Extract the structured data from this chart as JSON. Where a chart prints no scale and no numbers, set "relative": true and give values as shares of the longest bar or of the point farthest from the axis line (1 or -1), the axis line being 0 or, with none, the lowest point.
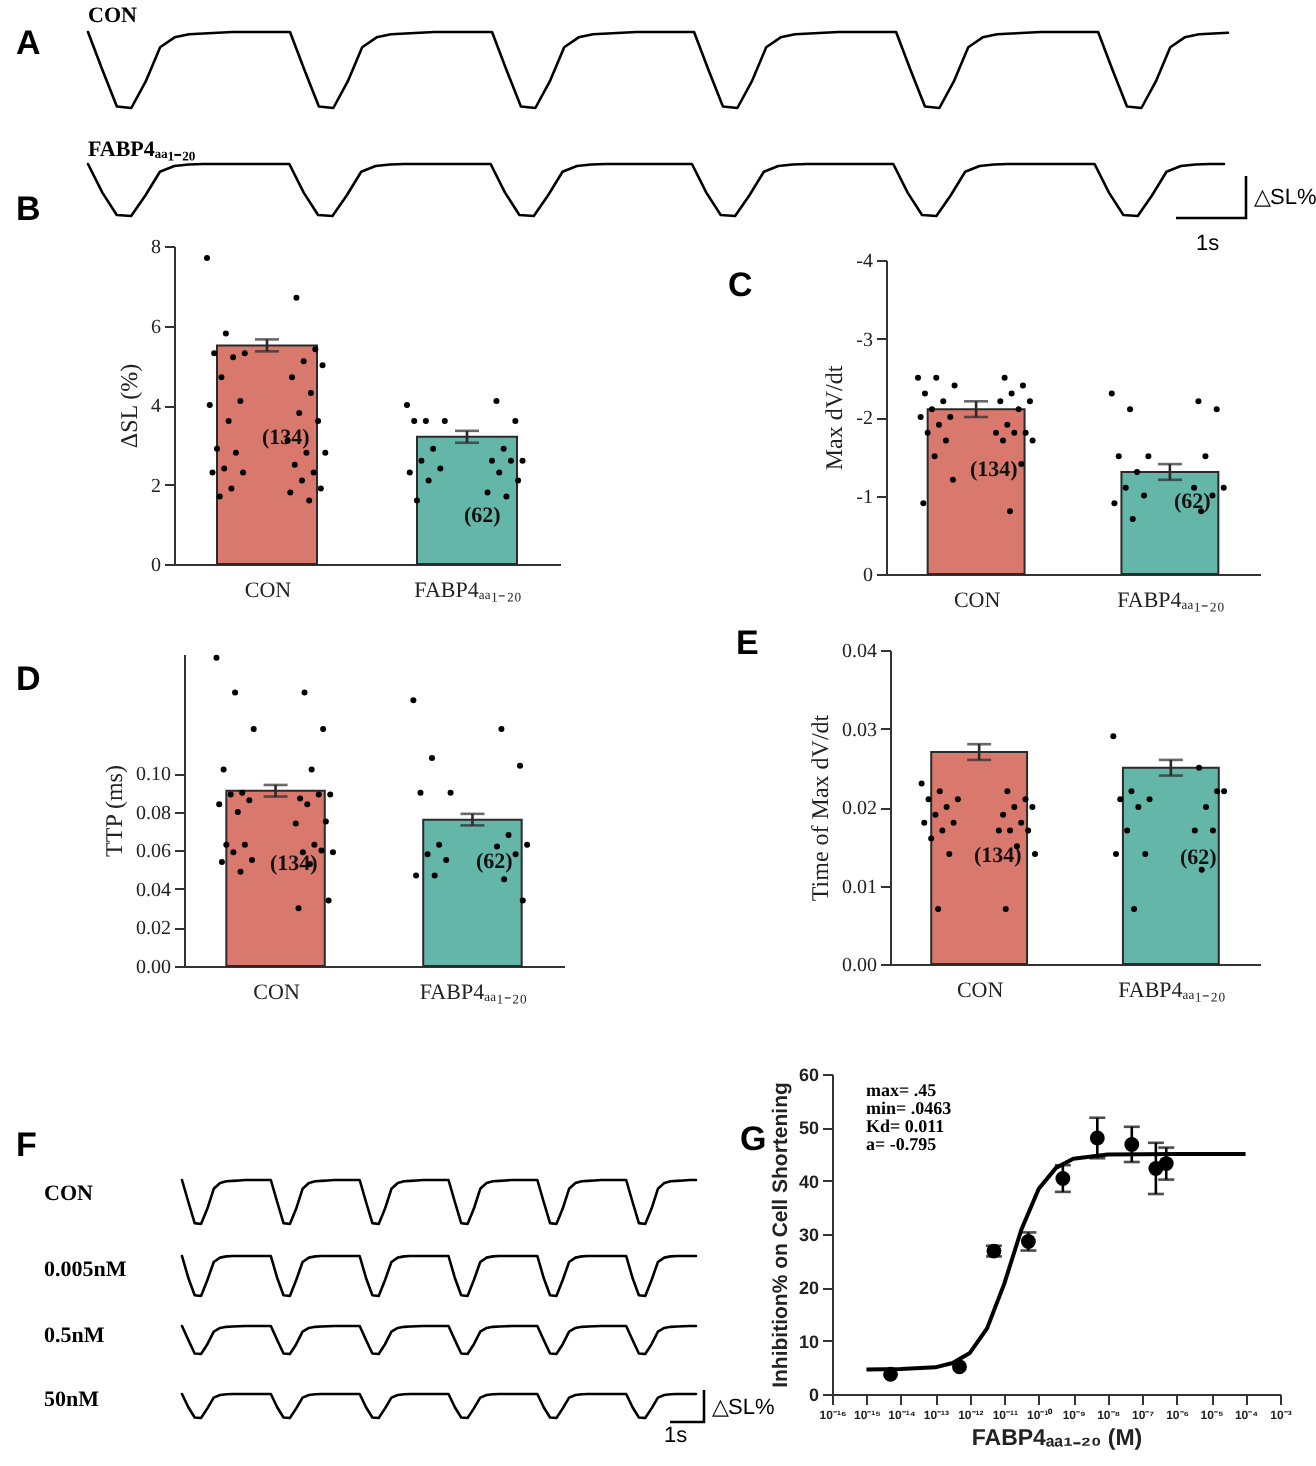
{
  "chart_data": [
    {
      "type": "line",
      "relative": true,
      "title": "CON",
      "color": "#000000",
      "annotations": [
        "A"
      ],
      "categories": [
        null,
        null,
        null,
        null,
        null,
        null,
        null,
        null,
        null,
        null,
        null,
        null,
        null,
        null,
        null,
        null,
        null,
        null,
        null,
        null,
        null,
        null,
        null,
        null,
        null,
        null,
        null,
        null,
        null,
        null,
        null,
        null,
        null,
        null,
        null,
        null,
        null,
        null,
        null,
        null,
        null,
        null,
        null,
        null,
        null,
        null,
        null,
        null,
        null,
        null,
        null,
        null,
        null,
        null,
        null,
        null,
        null,
        null,
        null,
        null,
        null,
        null,
        null,
        null,
        null,
        null,
        null,
        null,
        null,
        null,
        null,
        null,
        null,
        null,
        null,
        null,
        null,
        null,
        null,
        null
      ],
      "values": [
        1,
        0.5,
        0.02,
        0,
        0.35,
        0.8,
        0.93,
        0.97,
        0.98,
        0.99,
        1,
        1,
        1,
        1,
        1,
        0.5,
        0.02,
        0,
        0.35,
        0.8,
        0.93,
        0.97,
        0.98,
        0.99,
        1,
        1,
        1,
        1,
        1,
        0.5,
        0.02,
        0,
        0.35,
        0.8,
        0.93,
        0.97,
        0.98,
        0.99,
        1,
        1,
        1,
        1,
        1,
        0.5,
        0.02,
        0,
        0.35,
        0.8,
        0.93,
        0.97,
        0.98,
        0.99,
        1,
        1,
        1,
        1,
        1,
        0.5,
        0.02,
        0,
        0.35,
        0.8,
        0.93,
        0.97,
        0.98,
        0.99,
        1,
        1,
        1,
        1,
        1,
        0.5,
        0.02,
        0,
        0.35,
        0.8,
        0.93,
        0.97,
        0.98,
        0.99
      ]
    },
    {
      "type": "line",
      "relative": true,
      "title": "FABP4ₐₐ₁₋₂₀",
      "color": "#000000",
      "annotations": [
        "△SL%",
        "1s"
      ],
      "categories": [
        null,
        null,
        null,
        null,
        null,
        null,
        null,
        null,
        null,
        null,
        null,
        null,
        null,
        null,
        null,
        null,
        null,
        null,
        null,
        null,
        null,
        null,
        null,
        null,
        null,
        null,
        null,
        null,
        null,
        null,
        null,
        null,
        null,
        null,
        null,
        null,
        null,
        null,
        null,
        null,
        null,
        null,
        null,
        null,
        null,
        null,
        null,
        null,
        null,
        null,
        null,
        null,
        null,
        null,
        null,
        null,
        null,
        null,
        null,
        null,
        null,
        null,
        null,
        null,
        null,
        null,
        null,
        null,
        null,
        null,
        null,
        null,
        null,
        null,
        null,
        null,
        null,
        null,
        null,
        null
      ],
      "values": [
        1,
        0.45,
        0.02,
        0,
        0.4,
        0.85,
        0.96,
        0.99,
        1,
        1,
        1,
        1,
        1,
        1,
        1,
        0.45,
        0.02,
        0,
        0.4,
        0.85,
        0.96,
        0.99,
        1,
        1,
        1,
        1,
        1,
        1,
        1,
        0.45,
        0.02,
        0,
        0.4,
        0.85,
        0.96,
        0.99,
        1,
        1,
        1,
        1,
        1,
        1,
        1,
        0.45,
        0.02,
        0,
        0.4,
        0.85,
        0.96,
        0.99,
        1,
        1,
        1,
        1,
        1,
        1,
        1,
        0.45,
        0.02,
        0,
        0.4,
        0.85,
        0.96,
        0.99,
        1,
        1,
        1,
        1,
        1,
        1,
        1,
        0.45,
        0.02,
        0,
        0.4,
        0.85,
        0.96,
        0.99,
        1,
        1
      ]
    },
    {
      "type": "bar",
      "categories": [
        "CON",
        "FABP4ₐₐ₁₋₂₀"
      ],
      "ylabel": "ΔSL (%)",
      "ylim": [
        0,
        8
      ],
      "yticks": [
        0,
        2,
        4,
        6,
        8
      ],
      "marker": "circle",
      "series": [
        {
          "type": "bar",
          "values": [
            5.5,
            3.2
          ],
          "errors": [
            0.15,
            0.15
          ],
          "colors": [
            "#d9786d",
            "#64b6a8"
          ]
        },
        {
          "type": "scatter",
          "color": "#000000",
          "x": [
            "CON",
            "CON",
            "CON",
            "CON",
            "CON",
            "CON",
            "CON",
            "CON",
            "CON",
            "CON",
            "CON",
            "CON",
            "CON",
            "CON",
            "CON",
            "CON",
            "CON",
            "CON",
            "CON",
            "CON",
            "CON",
            "CON",
            "CON",
            "CON",
            "CON",
            "CON",
            "CON",
            "CON",
            "CON",
            "CON",
            "CON",
            "CON",
            "CON"
          ],
          "values": [
            7.7,
            6.7,
            5.8,
            5.4,
            5.3,
            5.3,
            5.1,
            5.2,
            5.0,
            4.7,
            4.7,
            4.3,
            4.1,
            4.0,
            3.8,
            3.6,
            3.6,
            3.1,
            2.9,
            2.8,
            2.8,
            2.8,
            2.5,
            2.4,
            2.3,
            2.3,
            2.3,
            2.1,
            1.9,
            1.9,
            1.8,
            1.7,
            1.6
          ]
        },
        {
          "type": "scatter",
          "color": "#000000",
          "x": [
            "FABP4ₐₐ₁₋₂₀",
            "FABP4ₐₐ₁₋₂₀",
            "FABP4ₐₐ₁₋₂₀",
            "FABP4ₐₐ₁₋₂₀",
            "FABP4ₐₐ₁₋₂₀",
            "FABP4ₐₐ₁₋₂₀",
            "FABP4ₐₐ₁₋₂₀",
            "FABP4ₐₐ₁₋₂₀",
            "FABP4ₐₐ₁₋₂₀",
            "FABP4ₐₐ₁₋₂₀",
            "FABP4ₐₐ₁₋₂₀",
            "FABP4ₐₐ₁₋₂₀",
            "FABP4ₐₐ₁₋₂₀",
            "FABP4ₐₐ₁₋₂₀",
            "FABP4ₐₐ₁₋₂₀",
            "FABP4ₐₐ₁₋₂₀",
            "FABP4ₐₐ₁₋₂₀",
            "FABP4ₐₐ₁₋₂₀",
            "FABP4ₐₐ₁₋₂₀",
            "FABP4ₐₐ₁₋₂₀"
          ],
          "values": [
            4.0,
            4.1,
            3.6,
            3.6,
            3.6,
            3.6,
            2.9,
            2.9,
            2.6,
            2.6,
            2.6,
            2.6,
            2.4,
            2.3,
            2.3,
            2.1,
            2.1,
            1.8,
            1.6,
            1.7
          ]
        }
      ],
      "annotations": [
        "(134)",
        "(62)",
        "B"
      ]
    },
    {
      "type": "bar",
      "categories": [
        "CON",
        "FABP4ₐₐ₁₋₂₀"
      ],
      "ylabel": "Max dV/dt",
      "ylim": [
        0,
        -4
      ],
      "yticks": [
        -4,
        -3,
        -2,
        -1,
        0
      ],
      "marker": "circle",
      "series": [
        {
          "type": "bar",
          "values": [
            -2.1,
            -1.3
          ],
          "errors": [
            0.1,
            0.1
          ],
          "colors": [
            "#d9786d",
            "#64b6a8"
          ]
        },
        {
          "type": "scatter",
          "color": "#000000",
          "x": [
            "CON",
            "CON",
            "CON",
            "CON",
            "CON",
            "CON",
            "CON",
            "CON",
            "CON",
            "CON",
            "CON",
            "CON",
            "CON",
            "CON",
            "CON",
            "CON",
            "CON",
            "CON",
            "CON",
            "CON",
            "CON",
            "CON",
            "CON",
            "CON",
            "CON",
            "CON",
            "CON",
            "CON"
          ],
          "values": [
            -2.5,
            -2.5,
            -2.5,
            -2.4,
            -2.4,
            -2.3,
            -2.3,
            -2.2,
            -2.2,
            -2.2,
            -2.1,
            -2.1,
            -2.0,
            -2.0,
            -1.9,
            -1.9,
            -1.8,
            -1.8,
            -1.8,
            -1.8,
            -1.7,
            -1.7,
            -1.7,
            -1.5,
            -1.4,
            -1.2,
            -0.9,
            -0.8
          ]
        },
        {
          "type": "scatter",
          "color": "#000000",
          "x": [
            "FABP4ₐₐ₁₋₂₀",
            "FABP4ₐₐ₁₋₂₀",
            "FABP4ₐₐ₁₋₂₀",
            "FABP4ₐₐ₁₋₂₀",
            "FABP4ₐₐ₁₋₂₀",
            "FABP4ₐₐ₁₋₂₀",
            "FABP4ₐₐ₁₋₂₀",
            "FABP4ₐₐ₁₋₂₀",
            "FABP4ₐₐ₁₋₂₀",
            "FABP4ₐₐ₁₋₂₀",
            "FABP4ₐₐ₁₋₂₀",
            "FABP4ₐₐ₁₋₂₀",
            "FABP4ₐₐ₁₋₂₀",
            "FABP4ₐₐ₁₋₂₀",
            "FABP4ₐₐ₁₋₂₀",
            "FABP4ₐₐ₁₋₂₀"
          ],
          "values": [
            -2.3,
            -2.2,
            -2.1,
            -2.1,
            -1.5,
            -1.5,
            -1.5,
            -1.3,
            -1.1,
            -1.1,
            -1.1,
            -1.0,
            -1.0,
            -0.9,
            -0.8,
            -0.7
          ]
        }
      ],
      "annotations": [
        "(134)",
        "(62)",
        "C"
      ]
    },
    {
      "type": "bar",
      "categories": [
        "CON",
        "FABP4ₐₐ₁₋₂₀"
      ],
      "ylabel": "TTP (ms)",
      "ylim": [
        0,
        0.162
      ],
      "yticks": [
        {
          "value": 0,
          "label": "0.00"
        },
        {
          "value": 0.02,
          "label": "0.02"
        },
        {
          "value": 0.04,
          "label": "0.04"
        },
        {
          "value": 0.06,
          "label": "0.06"
        },
        {
          "value": 0.08,
          "label": "0.08"
        },
        {
          "value": 0.1,
          "label": "0.10"
        }
      ],
      "marker": "circle",
      "series": [
        {
          "type": "bar",
          "values": [
            0.091,
            0.076
          ],
          "errors": [
            0.003,
            0.003
          ],
          "colors": [
            "#d9786d",
            "#64b6a8"
          ]
        },
        {
          "type": "scatter",
          "color": "#000000",
          "x": [
            "CON",
            "CON",
            "CON",
            "CON",
            "CON",
            "CON",
            "CON",
            "CON",
            "CON",
            "CON",
            "CON",
            "CON",
            "CON",
            "CON",
            "CON",
            "CON",
            "CON",
            "CON",
            "CON",
            "CON",
            "CON",
            "CON",
            "CON",
            "CON",
            "CON",
            "CON",
            "CON",
            "CON",
            "CON",
            "CON",
            "CON"
          ],
          "values": [
            0.16,
            0.142,
            0.142,
            0.123,
            0.123,
            0.102,
            0.102,
            0.09,
            0.089,
            0.087,
            0.089,
            0.089,
            0.086,
            0.084,
            0.084,
            0.08,
            0.075,
            0.074,
            0.063,
            0.063,
            0.063,
            0.059,
            0.059,
            0.059,
            0.06,
            0.055,
            0.054,
            0.053,
            0.049,
            0.034,
            0.03
          ]
        },
        {
          "type": "scatter",
          "color": "#000000",
          "x": [
            "FABP4ₐₐ₁₋₂₀",
            "FABP4ₐₐ₁₋₂₀",
            "FABP4ₐₐ₁₋₂₀",
            "FABP4ₐₐ₁₋₂₀",
            "FABP4ₐₐ₁₋₂₀",
            "FABP4ₐₐ₁₋₂₀",
            "FABP4ₐₐ₁₋₂₀",
            "FABP4ₐₐ₁₋₂₀",
            "FABP4ₐₐ₁₋₂₀",
            "FABP4ₐₐ₁₋₂₀",
            "FABP4ₐₐ₁₋₂₀",
            "FABP4ₐₐ₁₋₂₀",
            "FABP4ₐₐ₁₋₂₀",
            "FABP4ₐₐ₁₋₂₀",
            "FABP4ₐₐ₁₋₂₀",
            "FABP4ₐₐ₁₋₂₀",
            "FABP4ₐₐ₁₋₂₀"
          ],
          "values": [
            0.138,
            0.123,
            0.108,
            0.104,
            0.09,
            0.09,
            0.068,
            0.063,
            0.063,
            0.062,
            0.058,
            0.058,
            0.055,
            0.047,
            0.045,
            0.047,
            0.034
          ]
        }
      ],
      "annotations": [
        "(134)",
        "(62)",
        "D"
      ]
    },
    {
      "type": "bar",
      "categories": [
        "CON",
        "FABP4ₐₐ₁₋₂₀"
      ],
      "ylabel": "Time of Max dV/dt",
      "ylim": [
        0,
        0.04
      ],
      "yticks": [
        {
          "value": 0,
          "label": "0.00"
        },
        {
          "value": 0.01,
          "label": "0.01"
        },
        {
          "value": 0.02,
          "label": "0.02"
        },
        {
          "value": 0.03,
          "label": "0.03"
        },
        {
          "value": 0.04,
          "label": "0.04"
        }
      ],
      "marker": "circle",
      "series": [
        {
          "type": "bar",
          "values": [
            0.027,
            0.025
          ],
          "errors": [
            0.001,
            0.001
          ],
          "colors": [
            "#d9786d",
            "#64b6a8"
          ]
        },
        {
          "type": "scatter",
          "color": "#000000",
          "x": [
            "CON",
            "CON",
            "CON",
            "CON",
            "CON",
            "CON",
            "CON",
            "CON",
            "CON",
            "CON",
            "CON",
            "CON",
            "CON",
            "CON",
            "CON",
            "CON",
            "CON",
            "CON",
            "CON",
            "CON",
            "CON",
            "CON",
            "CON",
            "CON"
          ],
          "values": [
            0.023,
            0.022,
            0.022,
            0.021,
            0.021,
            0.021,
            0.02,
            0.02,
            0.02,
            0.019,
            0.019,
            0.018,
            0.018,
            0.018,
            0.017,
            0.017,
            0.017,
            0.017,
            0.016,
            0.015,
            0.014,
            0.014,
            0.007,
            0.007
          ]
        },
        {
          "type": "scatter",
          "color": "#000000",
          "x": [
            "FABP4ₐₐ₁₋₂₀",
            "FABP4ₐₐ₁₋₂₀",
            "FABP4ₐₐ₁₋₂₀",
            "FABP4ₐₐ₁₋₂₀",
            "FABP4ₐₐ₁₋₂₀",
            "FABP4ₐₐ₁₋₂₀",
            "FABP4ₐₐ₁₋₂₀",
            "FABP4ₐₐ₁₋₂₀",
            "FABP4ₐₐ₁₋₂₀",
            "FABP4ₐₐ₁₋₂₀",
            "FABP4ₐₐ₁₋₂₀",
            "FABP4ₐₐ₁₋₂₀",
            "FABP4ₐₐ₁₋₂₀",
            "FABP4ₐₐ₁₋₂₀",
            "FABP4ₐₐ₁₋₂₀",
            "FABP4ₐₐ₁₋₂₀"
          ],
          "values": [
            0.029,
            0.025,
            0.022,
            0.022,
            0.021,
            0.021,
            0.02,
            0.02,
            0.022,
            0.017,
            0.017,
            0.017,
            0.014,
            0.014,
            0.012,
            0.007
          ]
        }
      ],
      "annotations": [
        "(134)",
        "(62)",
        "E"
      ]
    },
    {
      "type": "line",
      "relative": true,
      "title": "CON",
      "color": "#000000",
      "annotations": [
        "F"
      ],
      "categories": [
        null,
        null,
        null,
        null,
        null,
        null,
        null,
        null,
        null,
        null,
        null,
        null,
        null,
        null,
        null,
        null,
        null,
        null,
        null,
        null,
        null,
        null,
        null,
        null,
        null,
        null,
        null,
        null,
        null,
        null,
        null,
        null,
        null,
        null,
        null,
        null,
        null,
        null,
        null,
        null,
        null,
        null,
        null,
        null,
        null,
        null,
        null,
        null,
        null,
        null,
        null,
        null,
        null,
        null,
        null,
        null,
        null,
        null,
        null,
        null,
        null,
        null,
        null,
        null,
        null,
        null,
        null,
        null,
        null,
        null,
        null,
        null,
        null,
        null,
        null,
        null,
        null,
        null,
        null,
        null,
        null,
        null
      ],
      "values": [
        1,
        0.5,
        0.02,
        0,
        0.35,
        0.8,
        0.93,
        0.97,
        0.98,
        0.99,
        1,
        1,
        1,
        1,
        1,
        0.5,
        0.02,
        0,
        0.35,
        0.8,
        0.93,
        0.97,
        0.98,
        0.99,
        1,
        1,
        1,
        1,
        1,
        0.5,
        0.02,
        0,
        0.35,
        0.8,
        0.93,
        0.97,
        0.98,
        0.99,
        1,
        1,
        1,
        1,
        1,
        0.5,
        0.02,
        0,
        0.35,
        0.8,
        0.93,
        0.97,
        0.98,
        0.99,
        1,
        1,
        1,
        1,
        1,
        0.5,
        0.02,
        0,
        0.35,
        0.8,
        0.93,
        0.97,
        0.98,
        0.99,
        1,
        1,
        1,
        1,
        1,
        0.5,
        0.02,
        0,
        0.35,
        0.8,
        0.93,
        0.97,
        0.98,
        0.99,
        1,
        1
      ]
    },
    {
      "type": "line",
      "relative": true,
      "title": "0.005nM",
      "color": "#000000",
      "categories": [
        null,
        null,
        null,
        null,
        null,
        null,
        null,
        null,
        null,
        null,
        null,
        null,
        null,
        null,
        null,
        null,
        null,
        null,
        null,
        null,
        null,
        null,
        null,
        null,
        null,
        null,
        null,
        null,
        null,
        null,
        null,
        null,
        null,
        null,
        null,
        null,
        null,
        null,
        null,
        null,
        null,
        null,
        null,
        null,
        null,
        null,
        null,
        null,
        null,
        null,
        null,
        null,
        null,
        null,
        null,
        null,
        null,
        null,
        null,
        null,
        null,
        null,
        null,
        null,
        null,
        null,
        null,
        null,
        null,
        null,
        null,
        null,
        null,
        null,
        null,
        null,
        null,
        null,
        null,
        null,
        null,
        null
      ],
      "values": [
        1,
        0.45,
        0.02,
        0,
        0.4,
        0.85,
        0.96,
        0.99,
        1,
        1,
        1,
        1,
        1,
        1,
        1,
        0.45,
        0.02,
        0,
        0.4,
        0.85,
        0.96,
        0.99,
        1,
        1,
        1,
        1,
        1,
        1,
        1,
        0.45,
        0.02,
        0,
        0.4,
        0.85,
        0.96,
        0.99,
        1,
        1,
        1,
        1,
        1,
        1,
        1,
        0.45,
        0.02,
        0,
        0.4,
        0.85,
        0.96,
        0.99,
        1,
        1,
        1,
        1,
        1,
        1,
        1,
        0.45,
        0.02,
        0,
        0.4,
        0.85,
        0.96,
        0.99,
        1,
        1,
        1,
        1,
        1,
        1,
        1,
        0.45,
        0.02,
        0,
        0.4,
        0.85,
        0.96,
        0.99,
        1,
        1,
        1,
        1
      ]
    },
    {
      "type": "line",
      "relative": true,
      "title": "0.5nM",
      "color": "#000000",
      "categories": [
        null,
        null,
        null,
        null,
        null,
        null,
        null,
        null,
        null,
        null,
        null,
        null,
        null,
        null,
        null,
        null,
        null,
        null,
        null,
        null,
        null,
        null,
        null,
        null,
        null,
        null,
        null,
        null,
        null,
        null,
        null,
        null,
        null,
        null,
        null,
        null,
        null,
        null,
        null,
        null,
        null,
        null,
        null,
        null,
        null,
        null,
        null,
        null,
        null,
        null,
        null,
        null,
        null,
        null,
        null,
        null,
        null,
        null,
        null,
        null,
        null,
        null,
        null,
        null,
        null,
        null,
        null,
        null,
        null,
        null,
        null,
        null,
        null,
        null,
        null,
        null,
        null,
        null,
        null,
        null,
        null,
        null
      ],
      "values": [
        1,
        0.5,
        0.02,
        0,
        0.35,
        0.8,
        0.93,
        0.97,
        0.98,
        0.99,
        1,
        1,
        1,
        1,
        1,
        0.5,
        0.02,
        0,
        0.35,
        0.8,
        0.93,
        0.97,
        0.98,
        0.99,
        1,
        1,
        1,
        1,
        1,
        0.5,
        0.02,
        0,
        0.35,
        0.8,
        0.93,
        0.97,
        0.98,
        0.99,
        1,
        1,
        1,
        1,
        1,
        0.5,
        0.02,
        0,
        0.35,
        0.8,
        0.93,
        0.97,
        0.98,
        0.99,
        1,
        1,
        1,
        1,
        1,
        0.5,
        0.02,
        0,
        0.35,
        0.8,
        0.93,
        0.97,
        0.98,
        0.99,
        1,
        1,
        1,
        1,
        1,
        0.5,
        0.02,
        0,
        0.35,
        0.8,
        0.93,
        0.97,
        0.98,
        0.99,
        1,
        1
      ]
    },
    {
      "type": "line",
      "relative": true,
      "title": "50nM",
      "color": "#000000",
      "annotations": [
        "△SL%",
        "1s"
      ],
      "categories": [
        null,
        null,
        null,
        null,
        null,
        null,
        null,
        null,
        null,
        null,
        null,
        null,
        null,
        null,
        null,
        null,
        null,
        null,
        null,
        null,
        null,
        null,
        null,
        null,
        null,
        null,
        null,
        null,
        null,
        null,
        null,
        null,
        null,
        null,
        null,
        null,
        null,
        null,
        null,
        null,
        null,
        null,
        null,
        null,
        null,
        null,
        null,
        null,
        null,
        null,
        null,
        null,
        null,
        null,
        null,
        null,
        null,
        null,
        null,
        null,
        null,
        null,
        null,
        null,
        null,
        null,
        null,
        null,
        null,
        null,
        null,
        null,
        null,
        null,
        null,
        null,
        null,
        null,
        null,
        null,
        null,
        null
      ],
      "values": [
        1,
        0.45,
        0.02,
        0,
        0.4,
        0.85,
        0.96,
        0.99,
        1,
        1,
        1,
        1,
        1,
        1,
        1,
        0.45,
        0.02,
        0,
        0.4,
        0.85,
        0.96,
        0.99,
        1,
        1,
        1,
        1,
        1,
        1,
        1,
        0.45,
        0.02,
        0,
        0.4,
        0.85,
        0.96,
        0.99,
        1,
        1,
        1,
        1,
        1,
        1,
        1,
        0.45,
        0.02,
        0,
        0.4,
        0.85,
        0.96,
        0.99,
        1,
        1,
        1,
        1,
        1,
        1,
        1,
        0.45,
        0.02,
        0,
        0.4,
        0.85,
        0.96,
        0.99,
        1,
        1,
        1,
        1,
        1,
        1,
        1,
        0.45,
        0.02,
        0,
        0.4,
        0.85,
        0.96,
        0.99,
        1,
        1,
        1,
        1
      ]
    },
    {
      "type": "scatter",
      "log": "x",
      "xlabel": "FABP4ₐₐ₁₋₂₀ (M)",
      "ylabel": "Inhibition% on Cell Shortening",
      "xlim": [
        1e-16,
        0.001
      ],
      "xticks": [
        {
          "value": 1e-16,
          "label": "10⁻¹⁶"
        },
        {
          "value": 1e-15,
          "label": "10⁻¹⁵"
        },
        {
          "value": 1e-14,
          "label": "10⁻¹⁴"
        },
        {
          "value": 1e-13,
          "label": "10⁻¹³"
        },
        {
          "value": 1e-12,
          "label": "10⁻¹²"
        },
        {
          "value": 1e-11,
          "label": "10⁻¹¹"
        },
        {
          "value": 1e-10,
          "label": "10⁻¹⁰"
        },
        {
          "value": 1e-09,
          "label": "10⁻⁹"
        },
        {
          "value": 1e-08,
          "label": "10⁻⁸"
        },
        {
          "value": 1e-07,
          "label": "10⁻⁷"
        },
        {
          "value": 1e-06,
          "label": "10⁻⁶"
        },
        {
          "value": 1e-05,
          "label": "10⁻⁵"
        },
        {
          "value": 0.0001,
          "label": "10⁻⁴"
        },
        {
          "value": 0.001,
          "label": "10⁻³"
        }
      ],
      "ylim": [
        0,
        60
      ],
      "yticks": [
        0,
        10,
        20,
        30,
        40,
        50,
        60
      ],
      "series": [
        {
          "type": "scatter",
          "marker": "circle",
          "color": "#000000",
          "x": [
            5e-15,
            5e-13,
            5e-12,
            5e-11,
            5e-10,
            5e-09,
            5e-08,
            2.5e-07,
            5e-07
          ],
          "values": [
            3.7,
            5.1,
            26.8,
            28.6,
            40.4,
            48,
            46.8,
            42.3,
            43.2
          ],
          "errors": [
            null,
            null,
            1,
            1.7,
            2.5,
            3.8,
            3.3,
            4.8,
            3
          ]
        },
        {
          "type": "line",
          "color": "#000000",
          "x": [
            1e-15,
            1e-14,
            1e-13,
            3.16e-13,
            1e-12,
            3.16e-12,
            1e-11,
            3.16e-11,
            1e-10,
            3.16e-10,
            1e-09,
            1e-08,
            1e-06,
            0.0001
          ],
          "values": [
            4.6,
            4.7,
            5,
            5.8,
            7.7,
            12.3,
            20.7,
            30.9,
            38.5,
            42.4,
            44.1,
            44.9,
            45,
            45
          ]
        }
      ],
      "annotations": [
        "max= .45",
        "min= .0463",
        "Kd= 0.011",
        "a= -0.795",
        "G"
      ]
    }
  ]
}
